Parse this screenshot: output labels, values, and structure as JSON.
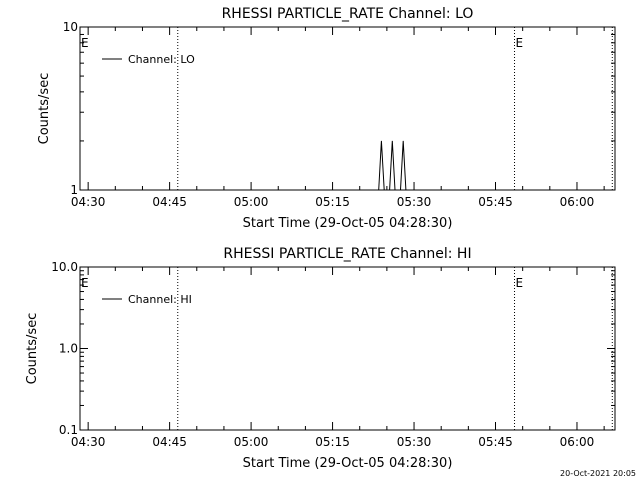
{
  "footer_timestamp": "20-Oct-2021 20:05",
  "chart_data": [
    {
      "type": "line",
      "title": "RHESSI PARTICLE_RATE Channel: LO",
      "xlabel": "Start Time (29-Oct-05 04:28:30)",
      "ylabel": "Counts/sec",
      "ylog": true,
      "ylim": [
        1,
        10
      ],
      "yticks": [
        1,
        10
      ],
      "ytick_labels": [
        "1",
        "10"
      ],
      "xlim": [
        "04:28:30",
        "06:07:00"
      ],
      "xticks": [
        "04:30",
        "04:45",
        "05:00",
        "05:15",
        "05:30",
        "05:45",
        "06:00"
      ],
      "grid": false,
      "legend": {
        "position": "top-left",
        "entries": [
          "Channel: LO"
        ]
      },
      "markers": [
        {
          "label": "E",
          "x": "04:28:30"
        },
        {
          "label": "",
          "x": "04:46:30"
        },
        {
          "label": "E",
          "x": "05:48:30"
        },
        {
          "label": "",
          "x": "06:06:30"
        }
      ],
      "series": [
        {
          "name": "Channel: LO",
          "x": [
            "05:23:30",
            "05:24:00",
            "05:24:30",
            "05:25:00",
            "05:25:30",
            "05:26:00",
            "05:26:30",
            "05:27:00",
            "05:27:30",
            "05:28:00",
            "05:28:30",
            "05:29:00"
          ],
          "y": [
            1,
            2,
            1,
            1,
            1,
            2,
            1,
            1,
            1,
            2,
            1,
            1
          ]
        }
      ]
    },
    {
      "type": "line",
      "title": "RHESSI PARTICLE_RATE Channel: HI",
      "xlabel": "Start Time (29-Oct-05 04:28:30)",
      "ylabel": "Counts/sec",
      "ylog": true,
      "ylim": [
        0.1,
        10
      ],
      "yticks": [
        0.1,
        1,
        10
      ],
      "ytick_labels": [
        "0.1",
        "1.0",
        "10.0"
      ],
      "xlim": [
        "04:28:30",
        "06:07:00"
      ],
      "xticks": [
        "04:30",
        "04:45",
        "05:00",
        "05:15",
        "05:30",
        "05:45",
        "06:00"
      ],
      "grid": false,
      "legend": {
        "position": "top-left",
        "entries": [
          "Channel: HI"
        ]
      },
      "markers": [
        {
          "label": "E",
          "x": "04:28:30"
        },
        {
          "label": "",
          "x": "04:46:30"
        },
        {
          "label": "E",
          "x": "05:48:30"
        },
        {
          "label": "",
          "x": "06:06:30"
        }
      ],
      "series": [
        {
          "name": "Channel: HI",
          "x": [],
          "y": []
        }
      ]
    }
  ]
}
